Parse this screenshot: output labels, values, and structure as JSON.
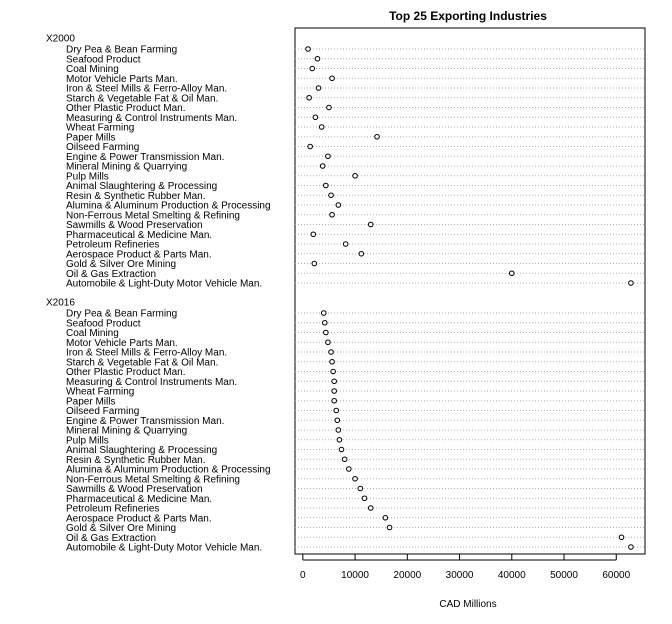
{
  "chart_data": {
    "type": "scatter",
    "title": "Top 25 Exporting Industries",
    "xlabel": "CAD Millions",
    "xlim": [
      -1500,
      65500
    ],
    "xticks": [
      0,
      10000,
      20000,
      30000,
      40000,
      50000,
      60000
    ],
    "xtick_labels": [
      "0",
      "10000",
      "20000",
      "30000",
      "40000",
      "50000",
      "60000"
    ],
    "grid": "horizontal dotted lines",
    "groups": [
      {
        "name": "X2000",
        "categories": [
          "Dry Pea & Bean Farming",
          "Seafood Product",
          "Coal Mining",
          "Motor Vehicle Parts Man.",
          "Iron & Steel Mills & Ferro-Alloy Man.",
          "Starch & Vegetable Fat & Oil Man.",
          "Other Plastic Product Man.",
          "Measuring & Control Instruments Man.",
          "Wheat Farming",
          "Paper Mills",
          "Oilseed Farming",
          "Engine & Power Transmission  Man.",
          "Mineral Mining & Quarrying",
          "Pulp Mills",
          "Animal Slaughtering & Processing",
          "Resin & Synthetic Rubber Man.",
          "Alumina & Aluminum Production & Processing",
          "Non-Ferrous Metal  Smelting & Refining",
          "Sawmills & Wood Preservation",
          "Pharmaceutical & Medicine Man.",
          "Petroleum Refineries",
          "Aerospace Product & Parts Man.",
          "Gold & Silver Ore Mining",
          "Oil & Gas Extraction",
          "Automobile & Light-Duty Motor Vehicle Man."
        ],
        "values": [
          1000,
          2800,
          1800,
          5600,
          3000,
          1200,
          5000,
          2400,
          3600,
          14200,
          1400,
          4800,
          3800,
          10000,
          4400,
          5400,
          6800,
          5600,
          13000,
          2000,
          8200,
          11200,
          2200,
          40000,
          62800
        ]
      },
      {
        "name": "X2016",
        "categories": [
          "Dry Pea & Bean Farming",
          "Seafood Product",
          "Coal Mining",
          "Motor Vehicle Parts Man.",
          "Iron & Steel Mills & Ferro-Alloy Man.",
          "Starch & Vegetable Fat & Oil Man.",
          "Other Plastic Product Man.",
          "Measuring & Control Instruments Man.",
          "Wheat Farming",
          "Paper Mills",
          "Oilseed Farming",
          "Engine & Power Transmission  Man.",
          "Mineral Mining & Quarrying",
          "Pulp Mills",
          "Animal Slaughtering & Processing",
          "Resin & Synthetic Rubber Man.",
          "Alumina & Aluminum Production & Processing",
          "Non-Ferrous Metal  Smelting & Refining",
          "Sawmills & Wood Preservation",
          "Pharmaceutical & Medicine Man.",
          "Petroleum Refineries",
          "Aerospace Product & Parts Man.",
          "Gold & Silver Ore Mining",
          "Oil & Gas Extraction",
          "Automobile & Light-Duty Motor Vehicle Man."
        ],
        "values": [
          4000,
          4200,
          4400,
          4800,
          5400,
          5600,
          5800,
          6000,
          6000,
          6000,
          6400,
          6600,
          6800,
          7000,
          7400,
          8000,
          8800,
          10000,
          11000,
          11800,
          13000,
          15800,
          16600,
          61000,
          62800
        ]
      }
    ]
  }
}
